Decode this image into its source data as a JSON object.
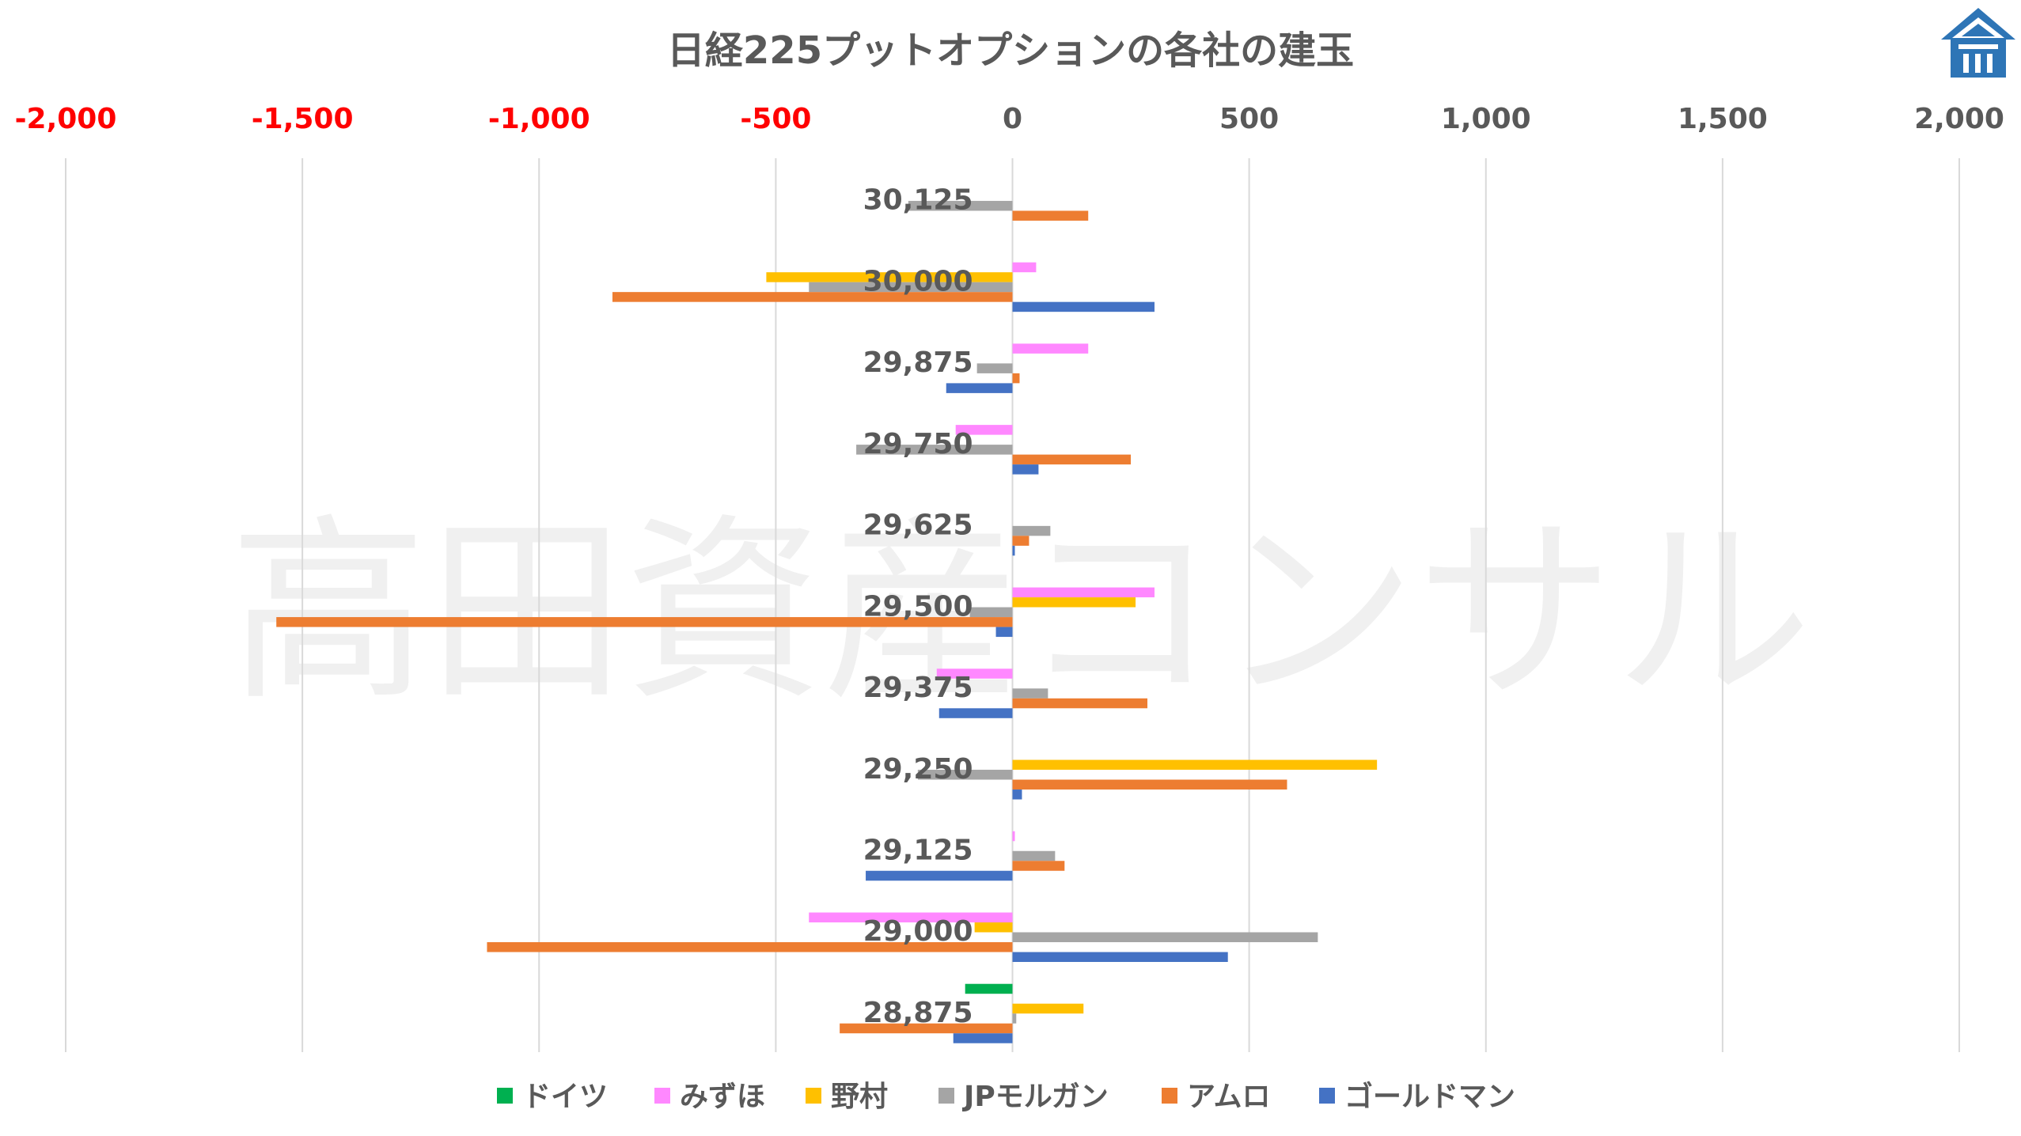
{
  "chart_data": {
    "type": "bar",
    "orientation": "horizontal",
    "title": "日経225プットオプションの各社の建玉",
    "watermark": "高田資産コンサル",
    "logo": "house-logo",
    "xlim": [
      -2000,
      2000
    ],
    "x_ticks": [
      "-2,000",
      "-1,500",
      "-1,000",
      "-500",
      "0",
      "500",
      "1,000",
      "1,500",
      "2,000"
    ],
    "tick_colors": {
      "negative": "#FF0000",
      "nonnegative": "#595959"
    },
    "grid": true,
    "legend_position": "bottom",
    "categories": [
      "30,125",
      "30,000",
      "29,875",
      "29,750",
      "29,625",
      "29,500",
      "29,375",
      "29,250",
      "29,125",
      "29,000",
      "28,875"
    ],
    "series": [
      {
        "name": "ドイツ",
        "color": "#00B050",
        "values": [
          0,
          0,
          0,
          0,
          0,
          0,
          0,
          0,
          0,
          0,
          -100
        ]
      },
      {
        "name": "みずほ",
        "color": "#FF88FF",
        "values": [
          0,
          50,
          160,
          -120,
          0,
          300,
          -160,
          0,
          5,
          -430,
          0
        ]
      },
      {
        "name": "野村",
        "color": "#FFC000",
        "values": [
          0,
          -520,
          0,
          0,
          0,
          260,
          0,
          770,
          0,
          -80,
          150
        ]
      },
      {
        "name": "JPモルガン",
        "color": "#A5A5A5",
        "values": [
          -220,
          -430,
          -75,
          -330,
          80,
          -90,
          75,
          -200,
          90,
          645,
          8
        ]
      },
      {
        "name": "アムロ",
        "color": "#ED7D31",
        "values": [
          160,
          -845,
          15,
          250,
          35,
          -1555,
          285,
          580,
          110,
          -1110,
          -365
        ]
      },
      {
        "name": "ゴールドマン",
        "color": "#4472C4",
        "values": [
          0,
          300,
          -140,
          55,
          5,
          -35,
          -155,
          20,
          -310,
          455,
          -125
        ]
      }
    ]
  }
}
